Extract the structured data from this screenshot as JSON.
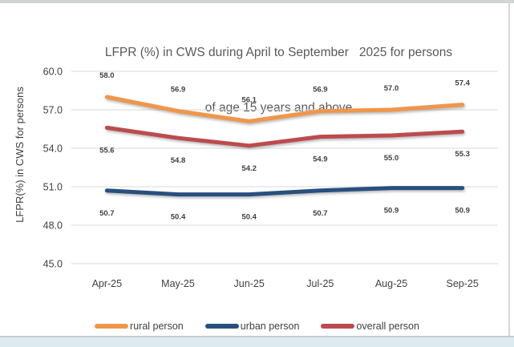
{
  "chart_data": {
    "type": "line",
    "title_line1": "LFPR (%) in CWS during April to September   2025 for persons",
    "title_line2": "of age 15 years and above",
    "ylabel": "LFPR(%) in CWS for persons",
    "categories": [
      "Apr-25",
      "May-25",
      "Jun-25",
      "Jul-25",
      "Aug-25",
      "Sep-25"
    ],
    "series": [
      {
        "name": "rural person",
        "color": "#F0964A",
        "values": [
          58.0,
          56.9,
          56.1,
          56.9,
          57.0,
          57.4
        ],
        "label_position": "above"
      },
      {
        "name": "urban person",
        "color": "#27507F",
        "values": [
          50.7,
          50.4,
          50.4,
          50.7,
          50.9,
          50.9
        ],
        "label_position": "below"
      },
      {
        "name": "overall person",
        "color": "#BC4B4D",
        "values": [
          55.6,
          54.8,
          54.2,
          54.9,
          55.0,
          55.3
        ],
        "label_position": "below"
      }
    ],
    "y_ticks": [
      60.0,
      57.0,
      54.0,
      51.0,
      48.0,
      45.0
    ],
    "ylim": [
      45,
      60
    ],
    "grid": true,
    "legend_position": "bottom",
    "gridline_color": "#D9D9D9",
    "text_color": "#404040",
    "title_color": "#595959",
    "data_label_color": "#404040"
  }
}
